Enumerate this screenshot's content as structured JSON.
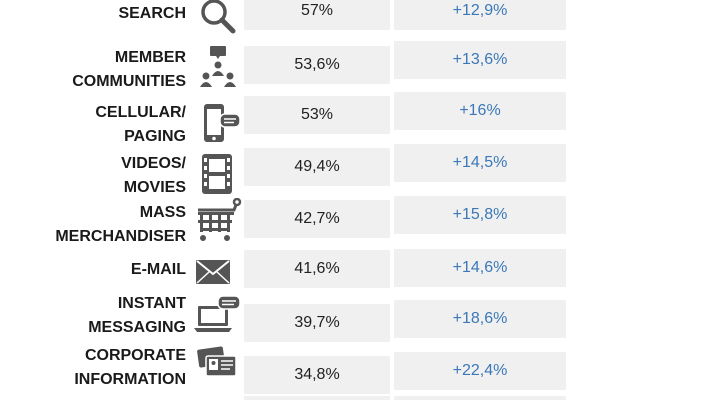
{
  "colors": {
    "growth": "#3a78b8",
    "cell_bg": "#f0f0f0",
    "icon": "#555555"
  },
  "chart_data": {
    "type": "table",
    "columns": [
      "category",
      "share",
      "growth"
    ],
    "rows": [
      {
        "label_lines": [
          "SEARCH"
        ],
        "icon": "magnifier-icon",
        "share": "57%",
        "growth": "+12,9%"
      },
      {
        "label_lines": [
          "MEMBER",
          "COMMUNITIES"
        ],
        "icon": "community-icon",
        "share": "53,6%",
        "growth": "+13,6%"
      },
      {
        "label_lines": [
          "CELLULAR/",
          "PAGING"
        ],
        "icon": "smartphone-icon",
        "share": "53%",
        "growth": "+16%"
      },
      {
        "label_lines": [
          "VIDEOS/",
          "MOVIES"
        ],
        "icon": "film-icon",
        "share": "49,4%",
        "growth": "+14,5%"
      },
      {
        "label_lines": [
          "MASS",
          "MERCHANDISER"
        ],
        "icon": "shopping-cart-icon",
        "share": "42,7%",
        "growth": "+15,8%"
      },
      {
        "label_lines": [
          "E-MAIL"
        ],
        "icon": "envelope-icon",
        "share": "41,6%",
        "growth": "+14,6%"
      },
      {
        "label_lines": [
          "INSTANT",
          "MESSAGING"
        ],
        "icon": "laptop-chat-icon",
        "share": "39,7%",
        "growth": "+18,6%"
      },
      {
        "label_lines": [
          "CORPORATE",
          "INFORMATION"
        ],
        "icon": "business-cards-icon",
        "share": "34,8%",
        "growth": "+22,4%"
      }
    ]
  }
}
